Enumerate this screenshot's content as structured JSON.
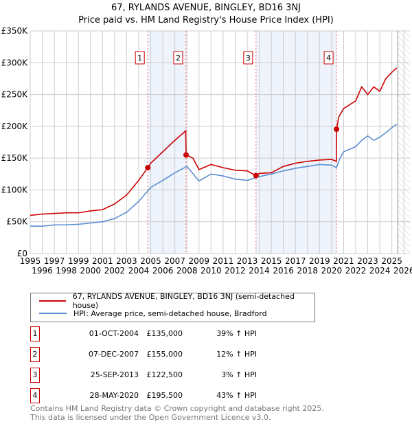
{
  "chart_data": {
    "type": "line",
    "title": "67, RYLANDS AVENUE, BINGLEY, BD16 3NJ",
    "subtitle": "Price paid vs. HM Land Registry's House Price Index (HPI)",
    "xlim": [
      1995,
      2026.5
    ],
    "ylim": [
      0,
      350000
    ],
    "yticks": [
      {
        "v": 0,
        "label": "£0"
      },
      {
        "v": 50000,
        "label": "£50K"
      },
      {
        "v": 100000,
        "label": "£100K"
      },
      {
        "v": 150000,
        "label": "£150K"
      },
      {
        "v": 200000,
        "label": "£200K"
      },
      {
        "v": 250000,
        "label": "£250K"
      },
      {
        "v": 300000,
        "label": "£300K"
      },
      {
        "v": 350000,
        "label": "£350K"
      }
    ],
    "xticks": [
      "1995",
      "1996",
      "1997",
      "1998",
      "1999",
      "2000",
      "2001",
      "2002",
      "2003",
      "2004",
      "2005",
      "2006",
      "2007",
      "2008",
      "2009",
      "2010",
      "2011",
      "2012",
      "2013",
      "2014",
      "2015",
      "2016",
      "2017",
      "2018",
      "2019",
      "2020",
      "2021",
      "2022",
      "2023",
      "2024",
      "2025",
      "2026"
    ],
    "grid": true,
    "series": [
      {
        "name": "67, RYLANDS AVENUE, BINGLEY, BD16 3NJ (semi-detached house)",
        "color": "#cc0000",
        "x": [
          1995,
          1996,
          1997,
          1998,
          1999,
          2000,
          2001,
          2002,
          2003,
          2004,
          2004.75,
          2005,
          2006,
          2007,
          2007.9,
          2007.93,
          2008.5,
          2009,
          2009.5,
          2010,
          2011,
          2012,
          2013,
          2013.73,
          2014,
          2015,
          2016,
          2017,
          2018,
          2019,
          2020,
          2020.4,
          2020.41,
          2020.6,
          2021,
          2022,
          2022.5,
          2023,
          2023.5,
          2024,
          2024.5,
          2025,
          2025.4
        ],
        "y": [
          60000,
          62000,
          63000,
          64000,
          64000,
          67000,
          69000,
          78000,
          92000,
          115000,
          135000,
          142000,
          160000,
          178000,
          193000,
          155000,
          150000,
          132000,
          136000,
          140000,
          135000,
          131000,
          130000,
          122500,
          126000,
          127000,
          137000,
          142000,
          145000,
          147000,
          148000,
          145000,
          195500,
          215000,
          228000,
          240000,
          262000,
          250000,
          262000,
          255000,
          275000,
          285000,
          292000
        ]
      },
      {
        "name": "HPI: Average price, semi-detached house, Bradford",
        "color": "#5b8fd1",
        "x": [
          1995,
          1996,
          1997,
          1998,
          1999,
          2000,
          2001,
          2002,
          2003,
          2004,
          2005,
          2006,
          2007,
          2008,
          2009,
          2010,
          2011,
          2012,
          2013,
          2014,
          2015,
          2016,
          2017,
          2018,
          2019,
          2020,
          2020.4,
          2020.7,
          2021,
          2022,
          2022.5,
          2023,
          2023.5,
          2024,
          2024.5,
          2025,
          2025.4
        ],
        "y": [
          43000,
          43000,
          45000,
          45000,
          46000,
          48000,
          50000,
          55000,
          65000,
          82000,
          104000,
          115000,
          127000,
          137000,
          114000,
          125000,
          122000,
          117000,
          115000,
          121000,
          125000,
          130000,
          134000,
          137000,
          140000,
          139000,
          135000,
          150000,
          160000,
          168000,
          178000,
          185000,
          178000,
          183000,
          190000,
          198000,
          203000
        ]
      }
    ],
    "sales": [
      {
        "num": "1",
        "x": 2004.75,
        "price": 135000,
        "date": "01-OCT-2004",
        "price_label": "£135,000",
        "hpi": "39% ↑ HPI"
      },
      {
        "num": "2",
        "x": 2007.93,
        "price": 155000,
        "date": "07-DEC-2007",
        "price_label": "£155,000",
        "hpi": "12% ↑ HPI"
      },
      {
        "num": "3",
        "x": 2013.73,
        "price": 122500,
        "date": "25-SEP-2013",
        "price_label": "£122,500",
        "hpi": "3% ↑ HPI"
      },
      {
        "num": "4",
        "x": 2020.41,
        "price": 195500,
        "date": "28-MAY-2020",
        "price_label": "£195,500",
        "hpi": "43% ↑ HPI"
      }
    ],
    "legend_placement": "below"
  },
  "legend": {
    "red": "67, RYLANDS AVENUE, BINGLEY, BD16 3NJ (semi-detached house)",
    "blue": "HPI: Average price, semi-detached house, Bradford"
  },
  "footer": {
    "line1": "Contains HM Land Registry data © Crown copyright and database right 2025.",
    "line2": "This data is licensed under the Open Government Licence v3.0."
  }
}
